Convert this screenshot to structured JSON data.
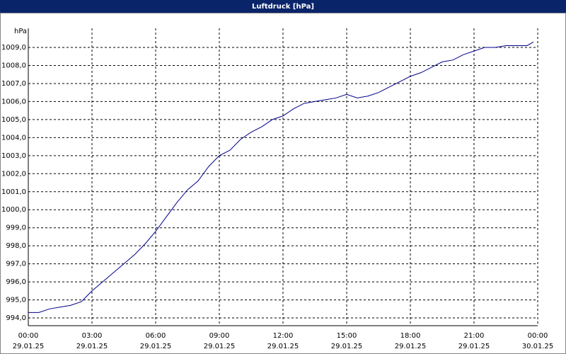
{
  "chart_data": {
    "type": "line",
    "title": "Luftdruck [hPa]",
    "y_unit": "hPa",
    "x": [
      0,
      0.5,
      1,
      1.5,
      2,
      2.5,
      3,
      3.5,
      4,
      4.5,
      5,
      5.5,
      6,
      6.5,
      7,
      7.5,
      8,
      8.5,
      9,
      9.5,
      10,
      10.5,
      11,
      11.5,
      12,
      12.5,
      13,
      13.5,
      14,
      14.5,
      15,
      15.5,
      16,
      16.5,
      17,
      17.5,
      18,
      18.5,
      19,
      19.5,
      20,
      20.5,
      21,
      21.5,
      22,
      22.5,
      23,
      23.5,
      23.8
    ],
    "series": [
      {
        "name": "Luftdruck",
        "color": "#00008b",
        "values": [
          994.3,
          994.3,
          994.5,
          994.6,
          994.7,
          994.9,
          995.5,
          996.0,
          996.5,
          997.0,
          997.5,
          998.1,
          998.8,
          999.6,
          1000.4,
          1001.1,
          1001.6,
          1002.4,
          1003.0,
          1003.3,
          1003.9,
          1004.3,
          1004.6,
          1005.0,
          1005.2,
          1005.6,
          1005.9,
          1006.0,
          1006.1,
          1006.2,
          1006.4,
          1006.2,
          1006.3,
          1006.5,
          1006.8,
          1007.1,
          1007.4,
          1007.6,
          1007.9,
          1008.2,
          1008.3,
          1008.6,
          1008.8,
          1009.0,
          1009.0,
          1009.1,
          1009.1,
          1009.1,
          1009.3
        ]
      }
    ],
    "xlim": [
      0,
      24
    ],
    "xticks": [
      {
        "value": 0,
        "label": "00:00"
      },
      {
        "value": 3,
        "label": "03:00"
      },
      {
        "value": 6,
        "label": "06:00"
      },
      {
        "value": 9,
        "label": "09:00"
      },
      {
        "value": 12,
        "label": "12:00"
      },
      {
        "value": 15,
        "label": "15:00"
      },
      {
        "value": 18,
        "label": "18:00"
      },
      {
        "value": 21,
        "label": "21:00"
      },
      {
        "value": 24,
        "label": "00:00"
      }
    ],
    "xtick_dates": [
      "29.01.25",
      "29.01.25",
      "29.01.25",
      "29.01.25",
      "29.01.25",
      "29.01.25",
      "29.01.25",
      "29.01.25",
      "30.01.25"
    ],
    "ylim": [
      993.57,
      1010.06
    ],
    "yticks": [
      {
        "value": 994,
        "label": "994,0"
      },
      {
        "value": 995,
        "label": "995,0"
      },
      {
        "value": 996,
        "label": "996,0"
      },
      {
        "value": 997,
        "label": "997,0"
      },
      {
        "value": 998,
        "label": "998,0"
      },
      {
        "value": 999,
        "label": "999,0"
      },
      {
        "value": 1000,
        "label": "1000,0"
      },
      {
        "value": 1001,
        "label": "1001,0"
      },
      {
        "value": 1002,
        "label": "1002,0"
      },
      {
        "value": 1003,
        "label": "1003,0"
      },
      {
        "value": 1004,
        "label": "1004,0"
      },
      {
        "value": 1005,
        "label": "1005,0"
      },
      {
        "value": 1006,
        "label": "1006,0"
      },
      {
        "value": 1007,
        "label": "1007,0"
      },
      {
        "value": 1008,
        "label": "1008,0"
      },
      {
        "value": 1009,
        "label": "1009,0"
      }
    ],
    "grid": true
  }
}
